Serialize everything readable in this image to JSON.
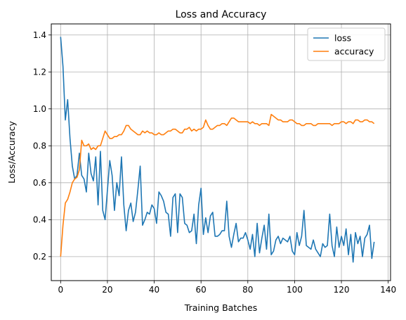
{
  "chart_data": {
    "type": "line",
    "title": "Loss and Accuracy",
    "xlabel": "Training Batches",
    "ylabel": "Loss/Accuracy",
    "xlim": [
      -4,
      141
    ],
    "ylim": [
      0.07,
      1.46
    ],
    "xticks": [
      0,
      20,
      40,
      60,
      80,
      100,
      120,
      140
    ],
    "yticks": [
      0.2,
      0.4,
      0.6,
      0.8,
      1.0,
      1.2,
      1.4
    ],
    "grid": true,
    "legend_position": "top-right",
    "series": [
      {
        "name": "loss",
        "color": "#1f77b4",
        "values": [
          1.39,
          1.23,
          0.94,
          1.05,
          0.84,
          0.69,
          0.62,
          0.64,
          0.76,
          0.64,
          0.62,
          0.55,
          0.76,
          0.65,
          0.61,
          0.74,
          0.48,
          0.77,
          0.45,
          0.4,
          0.56,
          0.72,
          0.64,
          0.45,
          0.6,
          0.53,
          0.74,
          0.48,
          0.34,
          0.45,
          0.49,
          0.39,
          0.44,
          0.56,
          0.69,
          0.37,
          0.4,
          0.44,
          0.43,
          0.48,
          0.46,
          0.38,
          0.55,
          0.53,
          0.5,
          0.44,
          0.43,
          0.31,
          0.52,
          0.54,
          0.33,
          0.54,
          0.52,
          0.38,
          0.37,
          0.33,
          0.34,
          0.43,
          0.27,
          0.48,
          0.57,
          0.32,
          0.41,
          0.33,
          0.42,
          0.44,
          0.31,
          0.31,
          0.32,
          0.34,
          0.34,
          0.5,
          0.31,
          0.25,
          0.32,
          0.38,
          0.28,
          0.3,
          0.3,
          0.33,
          0.29,
          0.24,
          0.32,
          0.2,
          0.38,
          0.22,
          0.3,
          0.37,
          0.24,
          0.43,
          0.21,
          0.23,
          0.29,
          0.31,
          0.27,
          0.3,
          0.29,
          0.28,
          0.31,
          0.23,
          0.21,
          0.33,
          0.26,
          0.31,
          0.45,
          0.26,
          0.25,
          0.24,
          0.29,
          0.24,
          0.22,
          0.2,
          0.27,
          0.25,
          0.26,
          0.43,
          0.26,
          0.2,
          0.36,
          0.25,
          0.31,
          0.26,
          0.35,
          0.21,
          0.32,
          0.17,
          0.33,
          0.27,
          0.31,
          0.2,
          0.3,
          0.32,
          0.37,
          0.19,
          0.28
        ],
        "x_start": 0
      },
      {
        "name": "accuracy",
        "color": "#ff7f0e",
        "values": [
          0.2,
          0.37,
          0.49,
          0.51,
          0.55,
          0.6,
          0.62,
          0.63,
          0.67,
          0.83,
          0.8,
          0.8,
          0.81,
          0.78,
          0.79,
          0.78,
          0.8,
          0.8,
          0.84,
          0.88,
          0.86,
          0.84,
          0.84,
          0.85,
          0.85,
          0.86,
          0.86,
          0.88,
          0.91,
          0.91,
          0.89,
          0.88,
          0.87,
          0.86,
          0.86,
          0.88,
          0.87,
          0.88,
          0.87,
          0.87,
          0.86,
          0.86,
          0.87,
          0.86,
          0.86,
          0.87,
          0.88,
          0.88,
          0.89,
          0.89,
          0.88,
          0.87,
          0.87,
          0.89,
          0.89,
          0.9,
          0.88,
          0.89,
          0.88,
          0.89,
          0.89,
          0.9,
          0.94,
          0.91,
          0.89,
          0.89,
          0.9,
          0.91,
          0.91,
          0.92,
          0.92,
          0.91,
          0.93,
          0.95,
          0.95,
          0.94,
          0.93,
          0.93,
          0.93,
          0.93,
          0.93,
          0.92,
          0.93,
          0.92,
          0.92,
          0.91,
          0.92,
          0.92,
          0.92,
          0.91,
          0.97,
          0.96,
          0.95,
          0.94,
          0.94,
          0.93,
          0.93,
          0.93,
          0.94,
          0.94,
          0.93,
          0.92,
          0.92,
          0.91,
          0.91,
          0.92,
          0.92,
          0.92,
          0.91,
          0.91,
          0.92,
          0.92,
          0.92,
          0.92,
          0.92,
          0.92,
          0.91,
          0.92,
          0.92,
          0.92,
          0.93,
          0.93,
          0.92,
          0.93,
          0.93,
          0.92,
          0.94,
          0.94,
          0.93,
          0.93,
          0.94,
          0.94,
          0.93,
          0.93,
          0.92
        ],
        "x_start": 0
      }
    ]
  }
}
